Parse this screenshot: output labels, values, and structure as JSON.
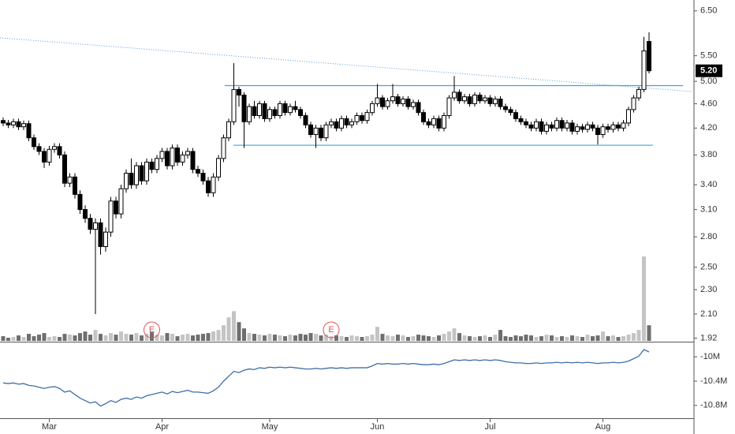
{
  "chart_data": {
    "type": "candlestick",
    "log_scale": true,
    "up_color": "#ffffff",
    "down_color": "#000000",
    "categories": [
      null,
      null,
      null,
      null,
      null,
      null,
      null,
      null,
      null,
      "Mar",
      null,
      null,
      null,
      null,
      null,
      null,
      null,
      null,
      null,
      null,
      null,
      null,
      null,
      null,
      null,
      null,
      null,
      null,
      null,
      null,
      null,
      "Apr",
      null,
      null,
      null,
      null,
      null,
      null,
      null,
      null,
      null,
      null,
      null,
      null,
      null,
      null,
      null,
      null,
      null,
      null,
      null,
      null,
      "May",
      null,
      null,
      null,
      null,
      null,
      null,
      null,
      null,
      null,
      null,
      null,
      null,
      null,
      null,
      null,
      null,
      null,
      null,
      null,
      null,
      "Jun",
      null,
      null,
      null,
      null,
      null,
      null,
      null,
      null,
      null,
      null,
      null,
      null,
      null,
      null,
      null,
      null,
      null,
      null,
      null,
      null,
      null,
      "Jul",
      null,
      null,
      null,
      null,
      null,
      null,
      null,
      null,
      null,
      null,
      null,
      null,
      null,
      null,
      null,
      null,
      null,
      null,
      null,
      null,
      null,
      "Aug",
      null,
      null,
      null,
      null,
      null,
      null,
      null,
      null,
      null
    ],
    "open": [
      4.32,
      4.28,
      4.25,
      4.3,
      4.22,
      4.27,
      4.05,
      3.92,
      3.85,
      3.7,
      3.88,
      3.92,
      3.8,
      3.42,
      3.5,
      3.28,
      3.1,
      3.0,
      2.88,
      2.95,
      2.7,
      2.85,
      3.2,
      3.05,
      3.35,
      3.55,
      3.4,
      3.65,
      3.45,
      3.7,
      3.6,
      3.75,
      3.85,
      3.65,
      3.9,
      3.7,
      3.8,
      3.85,
      3.6,
      3.55,
      3.45,
      3.3,
      3.5,
      3.75,
      4.05,
      4.3,
      4.85,
      4.75,
      4.3,
      4.55,
      4.4,
      4.6,
      4.35,
      4.5,
      4.4,
      4.6,
      4.45,
      4.55,
      4.5,
      4.4,
      4.25,
      4.1,
      4.2,
      4.05,
      4.25,
      4.3,
      4.2,
      4.35,
      4.25,
      4.3,
      4.4,
      4.32,
      4.45,
      4.6,
      4.7,
      4.55,
      4.65,
      4.72,
      4.6,
      4.68,
      4.55,
      4.62,
      4.45,
      4.3,
      4.25,
      4.35,
      4.2,
      4.4,
      4.7,
      4.8,
      4.65,
      4.72,
      4.6,
      4.75,
      4.65,
      4.7,
      4.6,
      4.68,
      4.55,
      4.5,
      4.45,
      4.35,
      4.3,
      4.25,
      4.2,
      4.3,
      4.15,
      4.25,
      4.2,
      4.32,
      4.2,
      4.28,
      4.15,
      4.22,
      4.18,
      4.25,
      4.2,
      4.1,
      4.22,
      4.18,
      4.25,
      4.2,
      4.28,
      4.5,
      4.7,
      4.85,
      5.8
    ],
    "high": [
      4.37,
      4.33,
      4.35,
      4.35,
      4.32,
      4.32,
      4.1,
      3.97,
      3.9,
      3.93,
      3.97,
      3.97,
      3.85,
      3.55,
      3.55,
      3.33,
      3.15,
      3.05,
      3.0,
      3.0,
      2.9,
      3.25,
      3.25,
      3.4,
      3.6,
      3.75,
      3.7,
      3.7,
      3.75,
      3.75,
      3.8,
      3.9,
      3.9,
      3.95,
      3.95,
      3.85,
      3.9,
      3.9,
      3.65,
      3.6,
      3.5,
      3.55,
      3.8,
      4.1,
      4.35,
      5.35,
      4.9,
      4.8,
      4.6,
      4.65,
      4.65,
      4.65,
      4.55,
      4.55,
      4.65,
      4.65,
      4.6,
      4.65,
      4.55,
      4.45,
      4.3,
      4.25,
      4.25,
      4.3,
      4.35,
      4.35,
      4.4,
      4.4,
      4.35,
      4.45,
      4.45,
      4.5,
      4.65,
      4.95,
      4.75,
      4.7,
      4.95,
      4.77,
      4.73,
      4.73,
      4.67,
      4.67,
      4.5,
      4.35,
      4.4,
      4.4,
      4.45,
      4.75,
      5.1,
      4.85,
      4.77,
      4.77,
      4.8,
      4.8,
      4.75,
      4.75,
      4.73,
      4.73,
      4.6,
      4.55,
      4.5,
      4.4,
      4.35,
      4.3,
      4.35,
      4.35,
      4.3,
      4.3,
      4.37,
      4.37,
      4.33,
      4.33,
      4.27,
      4.27,
      4.3,
      4.3,
      4.25,
      4.27,
      4.27,
      4.3,
      4.3,
      4.33,
      4.55,
      4.75,
      4.9,
      5.9,
      6.0
    ],
    "low": [
      4.23,
      4.2,
      4.2,
      4.17,
      4.17,
      4.0,
      3.87,
      3.8,
      3.62,
      3.65,
      3.83,
      3.75,
      3.37,
      3.37,
      3.23,
      3.05,
      2.95,
      2.83,
      2.1,
      2.62,
      2.65,
      2.8,
      3.0,
      3.0,
      3.3,
      3.35,
      3.35,
      3.4,
      3.4,
      3.55,
      3.55,
      3.7,
      3.6,
      3.6,
      3.65,
      3.65,
      3.75,
      3.55,
      3.5,
      3.4,
      3.25,
      3.25,
      3.45,
      3.7,
      4.0,
      4.25,
      4.55,
      3.9,
      4.25,
      4.35,
      4.35,
      4.3,
      4.3,
      4.35,
      4.35,
      4.4,
      4.4,
      4.45,
      4.35,
      4.2,
      4.05,
      3.9,
      4.0,
      4.0,
      4.2,
      4.15,
      4.15,
      4.2,
      4.2,
      4.25,
      4.27,
      4.27,
      4.4,
      4.55,
      4.5,
      4.5,
      4.6,
      4.55,
      4.55,
      4.5,
      4.5,
      4.4,
      4.25,
      4.2,
      4.2,
      4.15,
      4.15,
      4.35,
      4.65,
      4.6,
      4.6,
      4.55,
      4.55,
      4.6,
      4.6,
      4.55,
      4.55,
      4.5,
      4.45,
      4.4,
      4.3,
      4.25,
      4.2,
      4.15,
      4.15,
      4.1,
      4.1,
      4.15,
      4.15,
      4.15,
      4.15,
      4.1,
      4.1,
      4.13,
      4.13,
      4.15,
      3.95,
      4.05,
      4.13,
      4.13,
      4.15,
      4.15,
      4.23,
      4.45,
      4.65,
      4.8,
      5.15
    ],
    "close": [
      4.28,
      4.25,
      4.3,
      4.22,
      4.27,
      4.05,
      3.92,
      3.85,
      3.7,
      3.88,
      3.92,
      3.8,
      3.42,
      3.5,
      3.28,
      3.1,
      3.0,
      2.88,
      2.95,
      2.7,
      2.85,
      3.2,
      3.05,
      3.35,
      3.55,
      3.4,
      3.65,
      3.45,
      3.7,
      3.6,
      3.75,
      3.85,
      3.65,
      3.9,
      3.7,
      3.8,
      3.85,
      3.6,
      3.55,
      3.45,
      3.3,
      3.5,
      3.75,
      4.05,
      4.3,
      4.85,
      4.75,
      4.3,
      4.55,
      4.4,
      4.6,
      4.35,
      4.5,
      4.4,
      4.6,
      4.45,
      4.55,
      4.5,
      4.4,
      4.25,
      4.1,
      4.2,
      4.05,
      4.25,
      4.3,
      4.2,
      4.35,
      4.25,
      4.3,
      4.4,
      4.32,
      4.45,
      4.6,
      4.7,
      4.55,
      4.65,
      4.72,
      4.6,
      4.68,
      4.55,
      4.62,
      4.45,
      4.3,
      4.25,
      4.35,
      4.2,
      4.4,
      4.7,
      4.8,
      4.65,
      4.72,
      4.6,
      4.75,
      4.65,
      4.7,
      4.6,
      4.68,
      4.55,
      4.5,
      4.45,
      4.35,
      4.3,
      4.25,
      4.2,
      4.3,
      4.15,
      4.25,
      4.2,
      4.32,
      4.2,
      4.28,
      4.15,
      4.22,
      4.18,
      4.25,
      4.2,
      4.1,
      4.22,
      4.18,
      4.25,
      4.2,
      4.28,
      4.5,
      4.7,
      4.85,
      5.6,
      5.2
    ],
    "volume": [
      6,
      4,
      5,
      7,
      5,
      9,
      6,
      8,
      10,
      5,
      6,
      5,
      9,
      8,
      7,
      10,
      12,
      8,
      14,
      9,
      7,
      10,
      8,
      12,
      9,
      8,
      10,
      7,
      9,
      11,
      8,
      7,
      10,
      9,
      6,
      8,
      9,
      7,
      8,
      9,
      10,
      12,
      14,
      20,
      30,
      38,
      24,
      16,
      10,
      9,
      8,
      7,
      9,
      8,
      7,
      6,
      8,
      7,
      9,
      8,
      10,
      9,
      7,
      8,
      6,
      7,
      6,
      5,
      7,
      6,
      5,
      6,
      8,
      18,
      9,
      7,
      6,
      8,
      7,
      5,
      6,
      8,
      7,
      6,
      5,
      7,
      9,
      12,
      16,
      10,
      7,
      6,
      5,
      6,
      7,
      5,
      8,
      14,
      6,
      5,
      7,
      6,
      8,
      7,
      5,
      6,
      8,
      7,
      5,
      6,
      5,
      7,
      6,
      5,
      8,
      6,
      7,
      12,
      6,
      7,
      5,
      6,
      8,
      10,
      14,
      108,
      20
    ],
    "volume_up_color": "#c4c4c4",
    "volume_down_color": "#6e6e6e",
    "ylim": [
      1.9,
      6.77
    ],
    "yticks": [
      {
        "value": 6.5,
        "label": "6.50"
      },
      {
        "value": 5.5,
        "label": "5.50"
      },
      {
        "value": 5.0,
        "label": "5.00"
      },
      {
        "value": 4.6,
        "label": "4.60"
      },
      {
        "value": 4.2,
        "label": "4.20"
      },
      {
        "value": 3.8,
        "label": "3.80"
      },
      {
        "value": 3.4,
        "label": "3.40"
      },
      {
        "value": 3.1,
        "label": "3.10"
      },
      {
        "value": 2.8,
        "label": "2.80"
      },
      {
        "value": 2.5,
        "label": "2.50"
      },
      {
        "value": 2.3,
        "label": "2.30"
      },
      {
        "value": 2.1,
        "label": "2.10"
      },
      {
        "value": 1.92,
        "label": "1.92"
      }
    ],
    "price_tag": {
      "value": 5.2,
      "label": "5.20"
    },
    "levels": [
      4.92,
      3.94
    ],
    "level_color": "#42a5d5",
    "trendline": [
      5.88,
      4.81
    ],
    "trendline_color": "#5b9bd5",
    "events": [
      {
        "at": 29,
        "label": "E"
      },
      {
        "at": 64,
        "label": "E"
      }
    ],
    "event_color": "#e05050",
    "indicator": {
      "color": "#3d6fa6",
      "values": [
        -10.43,
        -10.44,
        -10.43,
        -10.45,
        -10.44,
        -10.47,
        -10.48,
        -10.5,
        -10.52,
        -10.5,
        -10.49,
        -10.52,
        -10.58,
        -10.56,
        -10.62,
        -10.68,
        -10.72,
        -10.76,
        -10.74,
        -10.81,
        -10.77,
        -10.72,
        -10.75,
        -10.7,
        -10.68,
        -10.7,
        -10.66,
        -10.68,
        -10.64,
        -10.62,
        -10.6,
        -10.58,
        -10.61,
        -10.57,
        -10.59,
        -10.57,
        -10.55,
        -10.58,
        -10.58,
        -10.59,
        -10.6,
        -10.56,
        -10.5,
        -10.4,
        -10.32,
        -10.24,
        -10.26,
        -10.22,
        -10.2,
        -10.21,
        -10.18,
        -10.19,
        -10.17,
        -10.18,
        -10.17,
        -10.18,
        -10.17,
        -10.18,
        -10.19,
        -10.2,
        -10.2,
        -10.19,
        -10.2,
        -10.19,
        -10.18,
        -10.19,
        -10.18,
        -10.19,
        -10.18,
        -10.18,
        -10.18,
        -10.18,
        -10.15,
        -10.11,
        -10.12,
        -10.11,
        -10.12,
        -10.12,
        -10.11,
        -10.12,
        -10.11,
        -10.12,
        -10.13,
        -10.13,
        -10.12,
        -10.13,
        -10.11,
        -10.08,
        -10.05,
        -10.06,
        -10.05,
        -10.06,
        -10.05,
        -10.06,
        -10.05,
        -10.06,
        -10.05,
        -10.06,
        -10.08,
        -10.09,
        -10.1,
        -10.1,
        -10.11,
        -10.11,
        -10.1,
        -10.11,
        -10.1,
        -10.1,
        -10.09,
        -10.1,
        -10.09,
        -10.1,
        -10.09,
        -10.1,
        -10.09,
        -10.1,
        -10.11,
        -10.1,
        -10.1,
        -10.09,
        -10.1,
        -10.09,
        -10.07,
        -10.03,
        -9.99,
        -9.88,
        -9.92
      ],
      "ylim": [
        -11.01,
        -9.79
      ],
      "yticks": [
        {
          "value": -10,
          "label": "-10M"
        },
        {
          "value": -10.4,
          "label": "-10.4M"
        },
        {
          "value": -10.8,
          "label": "-10.8M"
        }
      ]
    }
  }
}
